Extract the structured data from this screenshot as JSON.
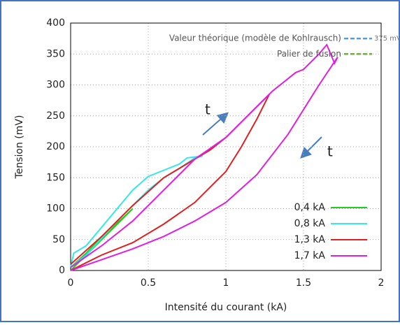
{
  "chart_data": {
    "type": "line",
    "xlabel": "Intensité du courant (kA)",
    "ylabel": "Tension (mV)",
    "xlim": [
      0,
      2
    ],
    "xticks": [
      0,
      0.5,
      1,
      1.5,
      2
    ],
    "ylim": [
      0,
      400
    ],
    "yticks": [
      0,
      50,
      100,
      150,
      200,
      250,
      300,
      350,
      400
    ],
    "grid": true,
    "legend": "lower right",
    "series": [
      {
        "name": "0,4 kA",
        "color": "#22cc22",
        "x": [
          0,
          0.1,
          0.2,
          0.3,
          0.4,
          0.35,
          0.2,
          0.1,
          0
        ],
        "values": [
          0,
          25,
          50,
          75,
          100,
          88,
          55,
          28,
          5
        ]
      },
      {
        "name": "0,8 kA",
        "color": "#33e8e8",
        "x": [
          0,
          0.02,
          0.1,
          0.2,
          0.3,
          0.4,
          0.5,
          0.6,
          0.7,
          0.75,
          0.85,
          0.8,
          0.7,
          0.6,
          0.5,
          0.4,
          0.3,
          0.2,
          0.1,
          0
        ],
        "values": [
          5,
          28,
          40,
          70,
          100,
          130,
          152,
          162,
          172,
          182,
          185,
          182,
          165,
          150,
          130,
          105,
          80,
          52,
          25,
          5
        ]
      },
      {
        "name": "1,3 kA",
        "color": "#e02020",
        "x": [
          0,
          0.2,
          0.4,
          0.6,
          0.8,
          1.0,
          1.1,
          1.2,
          1.28,
          1.2,
          1.1,
          1.0,
          0.9,
          0.8,
          0.6,
          0.4,
          0.2,
          0
        ],
        "values": [
          0,
          25,
          45,
          75,
          110,
          160,
          200,
          245,
          285,
          265,
          240,
          215,
          195,
          180,
          150,
          105,
          55,
          10
        ]
      },
      {
        "name": "1,7 kA",
        "color": "#e020e0",
        "x": [
          0,
          0.4,
          0.6,
          0.8,
          1.0,
          1.2,
          1.4,
          1.6,
          1.72,
          1.7,
          1.65,
          1.6,
          1.5,
          1.45,
          1.3,
          1.1,
          1.0,
          0.8,
          0.6,
          0.4,
          0.2,
          0
        ],
        "values": [
          0,
          35,
          55,
          80,
          110,
          155,
          220,
          300,
          345,
          335,
          365,
          350,
          325,
          320,
          290,
          240,
          215,
          180,
          130,
          80,
          40,
          5
        ]
      }
    ],
    "reference_lines": [
      {
        "label": "Valeur théorique (modèle de Kohlrausch)",
        "value": 375,
        "value_label": "375 mV",
        "color": "#5b9bd5"
      },
      {
        "label": "Palier de fusion",
        "value": 350,
        "color": "#70ad47"
      }
    ],
    "annotations": [
      "t",
      "t"
    ]
  }
}
